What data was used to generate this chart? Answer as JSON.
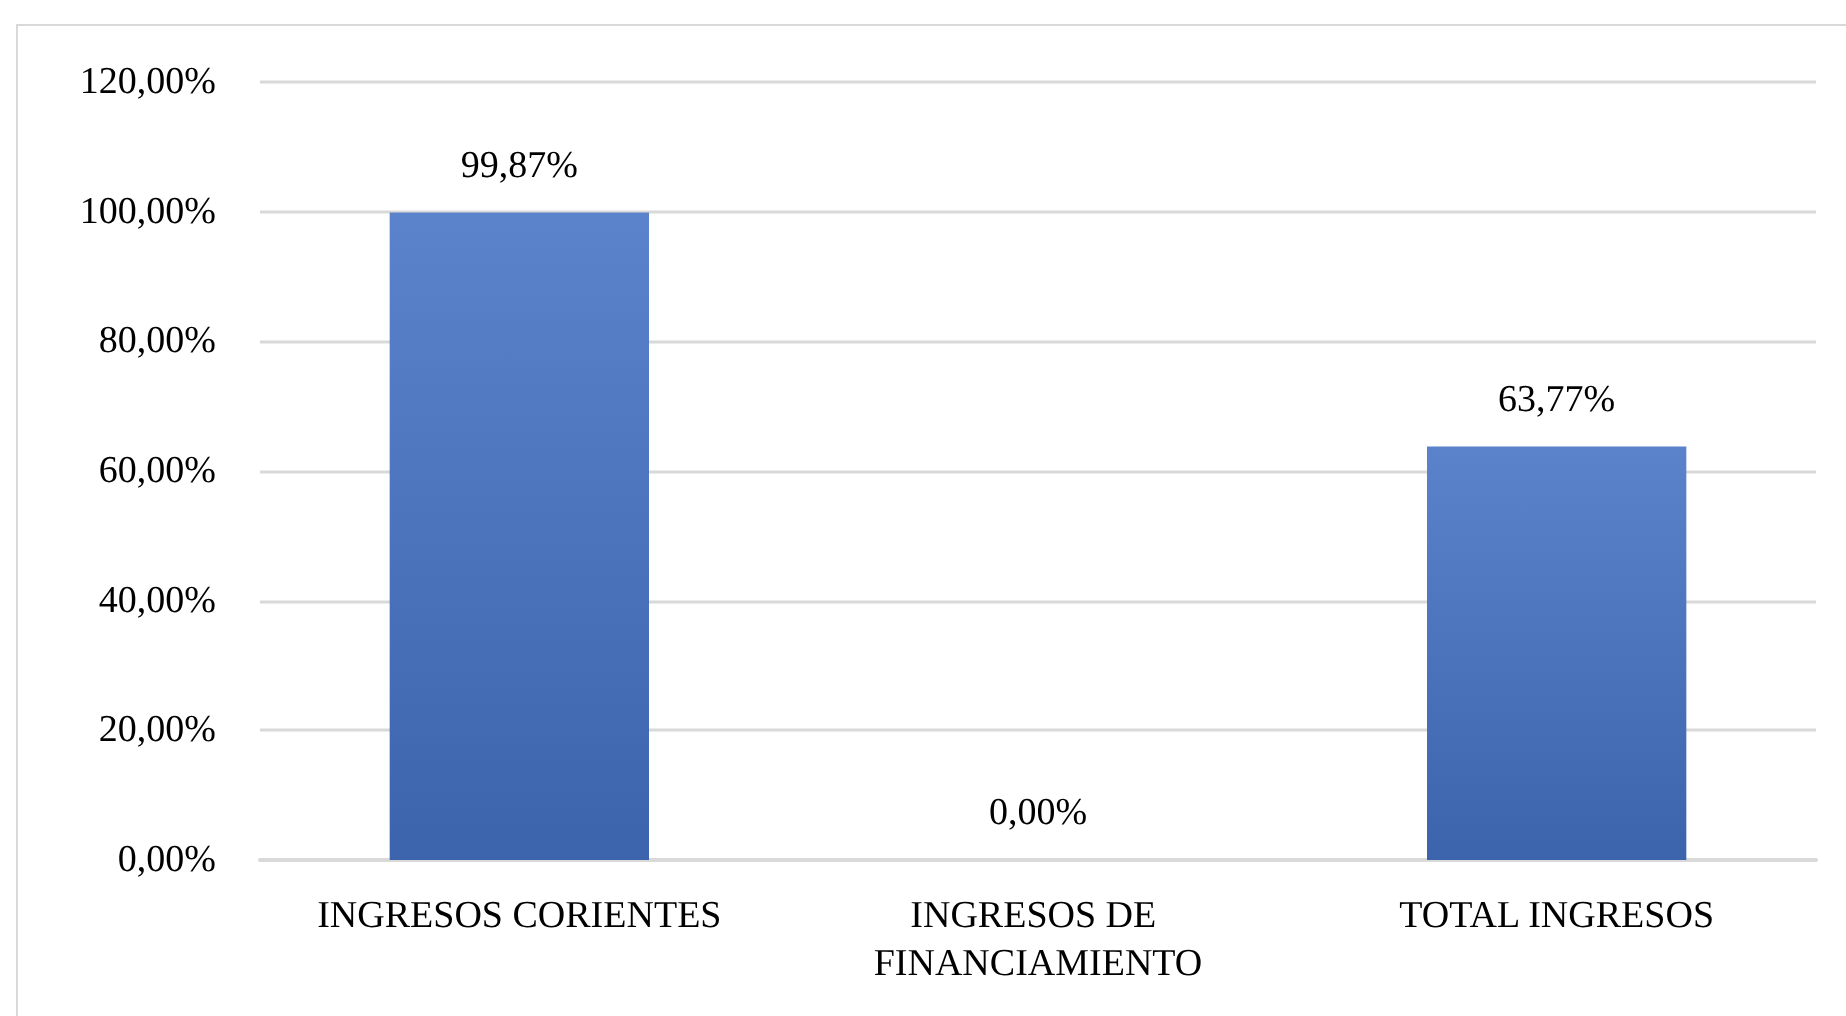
{
  "chart_data": {
    "type": "bar",
    "categories": [
      "INGRESOS CORIENTES",
      "INGRESOS DE FINANCIAMIENTO",
      "TOTAL INGRESOS"
    ],
    "values": [
      99.87,
      0,
      63.77
    ],
    "color": "#4472c4",
    "value_labels": [
      "99,87%",
      "0,00%",
      "63,77%"
    ],
    "ylim": [
      0,
      120
    ],
    "yticks": [
      {
        "value": 0,
        "label": "0,00%"
      },
      {
        "value": 20,
        "label": "20,00%"
      },
      {
        "value": 40,
        "label": "40,00%"
      },
      {
        "value": 60,
        "label": "60,00%"
      },
      {
        "value": 80,
        "label": "80,00%"
      },
      {
        "value": 100,
        "label": "100,00%"
      },
      {
        "value": 120,
        "label": "120,00%"
      }
    ],
    "grid": "y"
  }
}
